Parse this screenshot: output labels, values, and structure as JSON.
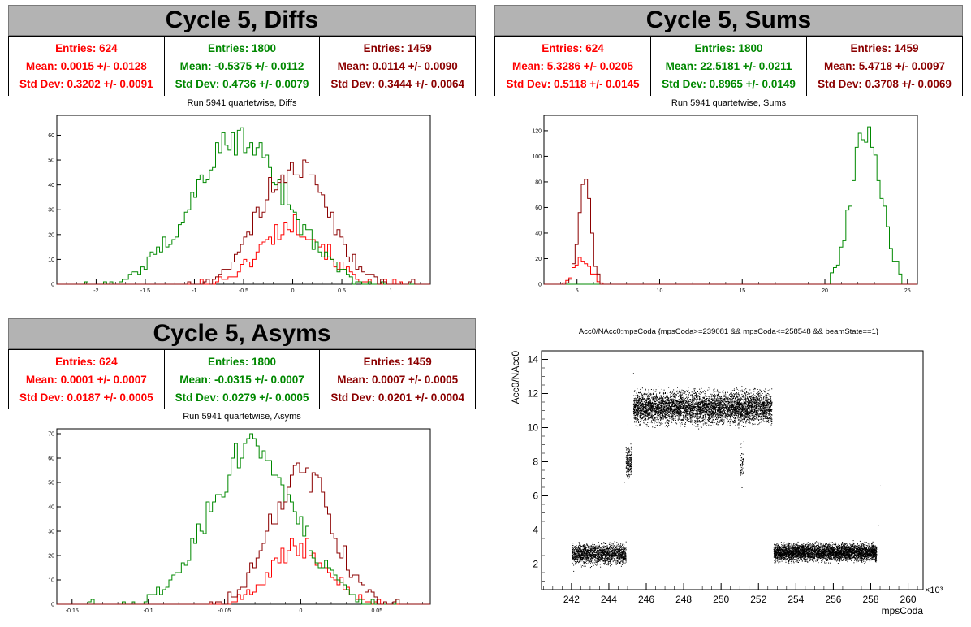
{
  "panels": {
    "diffs": {
      "title": "Cycle 5, Diffs",
      "subtitle": "Run 5941 quartetwise, Diffs",
      "stats": [
        {
          "entries": "Entries: 624",
          "mean": "Mean: 0.0015 +/- 0.0128",
          "std": "Std Dev: 0.3202 +/- 0.0091",
          "color": "#ff0000"
        },
        {
          "entries": "Entries: 1800",
          "mean": "Mean: -0.5375 +/- 0.0112",
          "std": "Std Dev: 0.4736 +/- 0.0079",
          "color": "#008800"
        },
        {
          "entries": "Entries: 1459",
          "mean": "Mean: 0.0114 +/- 0.0090",
          "std": "Std Dev: 0.3444 +/- 0.0064",
          "color": "#8b0000"
        }
      ]
    },
    "sums": {
      "title": "Cycle 5, Sums",
      "subtitle": "Run 5941 quartetwise, Sums",
      "stats": [
        {
          "entries": "Entries: 624",
          "mean": "Mean: 5.3286 +/- 0.0205",
          "std": "Std Dev: 0.5118 +/- 0.0145",
          "color": "#ff0000"
        },
        {
          "entries": "Entries: 1800",
          "mean": "Mean: 22.5181 +/- 0.0211",
          "std": "Std Dev: 0.8965 +/- 0.0149",
          "color": "#008800"
        },
        {
          "entries": "Entries: 1459",
          "mean": "Mean: 5.4718 +/- 0.0097",
          "std": "Std Dev: 0.3708 +/- 0.0069",
          "color": "#8b0000"
        }
      ]
    },
    "asyms": {
      "title": "Cycle 5, Asyms",
      "subtitle": "Run 5941 quartetwise, Asyms",
      "stats": [
        {
          "entries": "Entries: 624",
          "mean": "Mean: 0.0001 +/- 0.0007",
          "std": "Std Dev: 0.0187 +/- 0.0005",
          "color": "#ff0000"
        },
        {
          "entries": "Entries: 1800",
          "mean": "Mean: -0.0315 +/- 0.0007",
          "std": "Std Dev: 0.0279 +/- 0.0005",
          "color": "#008800"
        },
        {
          "entries": "Entries: 1459",
          "mean": "Mean: 0.0007 +/- 0.0005",
          "std": "Std Dev: 0.0201 +/- 0.0004",
          "color": "#8b0000"
        }
      ]
    },
    "scatter": {
      "title": "Acc0/NAcc0:mpsCoda {mpsCoda>=239081 && mpsCoda<=258548 && beamState==1}",
      "xlabel": "mpsCoda",
      "ylabel": "Acc0/NAcc0",
      "xexp": "×10³"
    }
  },
  "chart_data": [
    {
      "type": "histogram",
      "name": "diffs",
      "xlim": [
        -2.4,
        1.4
      ],
      "ylim": [
        0,
        68
      ],
      "xticks": [
        -2,
        -1.5,
        -1,
        -0.5,
        0,
        0.5,
        1
      ],
      "xtick_labels": [
        "-2",
        "-1.5",
        "-1",
        "-0.5",
        "0",
        "0.5",
        "1"
      ],
      "yticks": [
        0,
        10,
        20,
        30,
        40,
        50,
        60
      ],
      "series": [
        {
          "color": "#ff0000",
          "mean": 0.0015,
          "std": 0.3202,
          "peak": 24,
          "lo": -1.0,
          "hi": 1.1
        },
        {
          "color": "#008800",
          "mean": -0.5375,
          "std": 0.4736,
          "peak": 58,
          "lo": -2.1,
          "hi": 1.0
        },
        {
          "color": "#8b0000",
          "mean": 0.0114,
          "std": 0.3444,
          "peak": 48,
          "lo": -1.1,
          "hi": 1.3
        }
      ]
    },
    {
      "type": "histogram",
      "name": "sums",
      "xlim": [
        3,
        25.6
      ],
      "ylim": [
        0,
        132
      ],
      "xticks": [
        5,
        10,
        15,
        20,
        25
      ],
      "xtick_labels": [
        "5",
        "10",
        "15",
        "20",
        "25"
      ],
      "yticks": [
        0,
        20,
        40,
        60,
        80,
        100,
        120
      ],
      "series": [
        {
          "color": "#ff0000",
          "mean": 5.3286,
          "std": 0.5118,
          "peak": 20,
          "lo": 3.9,
          "hi": 6.8
        },
        {
          "color": "#008800",
          "mean": 22.5181,
          "std": 0.8965,
          "peak": 122,
          "lo": 19.8,
          "hi": 25.0
        },
        {
          "color": "#8b0000",
          "mean": 5.4718,
          "std": 0.3708,
          "peak": 78,
          "lo": 4.3,
          "hi": 6.6
        }
      ]
    },
    {
      "type": "histogram",
      "name": "asyms",
      "xlim": [
        -0.16,
        0.085
      ],
      "ylim": [
        0,
        72
      ],
      "xticks": [
        -0.15,
        -0.1,
        -0.05,
        0,
        0.05
      ],
      "xtick_labels": [
        "-0.15",
        "-0.1",
        "-0.05",
        "0",
        "0.05"
      ],
      "yticks": [
        0,
        10,
        20,
        30,
        40,
        50,
        60,
        70
      ],
      "series": [
        {
          "color": "#ff0000",
          "mean": 0.0001,
          "std": 0.0187,
          "peak": 24,
          "lo": -0.05,
          "hi": 0.06
        },
        {
          "color": "#008800",
          "mean": -0.0315,
          "std": 0.0279,
          "peak": 64,
          "lo": -0.14,
          "hi": 0.07
        },
        {
          "color": "#8b0000",
          "mean": 0.0007,
          "std": 0.0201,
          "peak": 54,
          "lo": -0.06,
          "hi": 0.07
        }
      ]
    },
    {
      "type": "scatter",
      "name": "acc0-vs-mpscoda",
      "xlim": [
        240.4,
        260.8
      ],
      "ylim": [
        0.5,
        14.5
      ],
      "xticks": [
        242,
        244,
        246,
        248,
        250,
        252,
        254,
        256,
        258,
        260
      ],
      "yticks": [
        2,
        4,
        6,
        8,
        10,
        12,
        14
      ],
      "clusters": [
        {
          "x0": 242.0,
          "x1": 244.9,
          "y": 2.6,
          "spread": 0.35,
          "n": 1700
        },
        {
          "x0": 244.9,
          "x1": 245.2,
          "y": 8.0,
          "spread": 0.5,
          "n": 180
        },
        {
          "x0": 245.3,
          "x1": 252.7,
          "y": 11.2,
          "spread": 0.55,
          "n": 5200
        },
        {
          "x0": 251.0,
          "x1": 251.2,
          "y": 8.0,
          "spread": 0.6,
          "n": 50
        },
        {
          "x0": 252.8,
          "x1": 258.3,
          "y": 2.7,
          "spread": 0.3,
          "n": 4200
        }
      ],
      "color": "#000000"
    }
  ]
}
